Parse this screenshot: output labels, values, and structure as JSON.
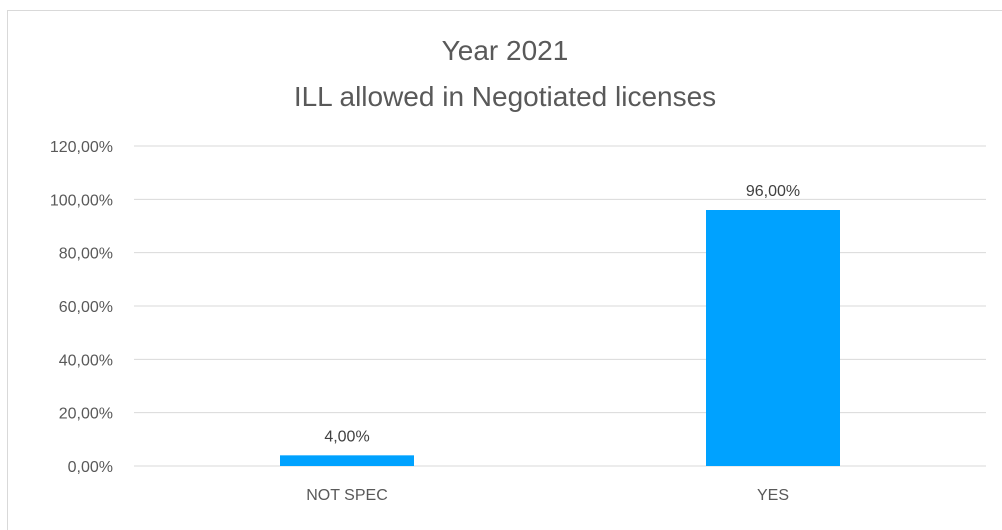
{
  "chart_data": {
    "type": "bar",
    "title": [
      "Year 2021",
      "ILL allowed in Negotiated licenses"
    ],
    "categories": [
      "NOT SPEC",
      "YES"
    ],
    "values": [
      4.0,
      96.0
    ],
    "data_labels": [
      "4,00%",
      "96,00%"
    ],
    "ylim": [
      0,
      120
    ],
    "yticks": [
      0,
      20,
      40,
      60,
      80,
      100,
      120
    ],
    "ytick_labels": [
      "0,00%",
      "20,00%",
      "40,00%",
      "60,00%",
      "80,00%",
      "100,00%",
      "120,00%"
    ],
    "xlabel": "",
    "ylabel": "",
    "grid": true,
    "legend": "none",
    "colors": {
      "bar": "#00a2ff",
      "grid": "#d9d9d9",
      "text": "#595959"
    }
  }
}
